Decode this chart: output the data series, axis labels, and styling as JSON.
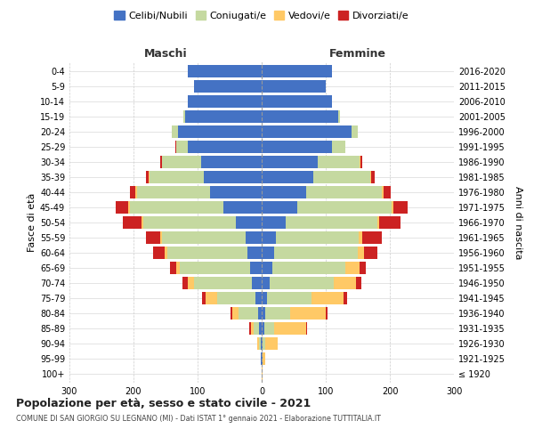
{
  "age_groups": [
    "100+",
    "95-99",
    "90-94",
    "85-89",
    "80-84",
    "75-79",
    "70-74",
    "65-69",
    "60-64",
    "55-59",
    "50-54",
    "45-49",
    "40-44",
    "35-39",
    "30-34",
    "25-29",
    "20-24",
    "15-19",
    "10-14",
    "5-9",
    "0-4"
  ],
  "birth_years": [
    "≤ 1920",
    "1921-1925",
    "1926-1930",
    "1931-1935",
    "1936-1940",
    "1941-1945",
    "1946-1950",
    "1951-1955",
    "1956-1960",
    "1961-1965",
    "1966-1970",
    "1971-1975",
    "1976-1980",
    "1981-1985",
    "1986-1990",
    "1991-1995",
    "1996-2000",
    "2001-2005",
    "2006-2010",
    "2011-2015",
    "2016-2020"
  ],
  "maschi": {
    "celibi": [
      0,
      1,
      2,
      4,
      6,
      10,
      15,
      18,
      22,
      25,
      40,
      60,
      80,
      90,
      95,
      115,
      130,
      120,
      115,
      105,
      115
    ],
    "coniugati": [
      0,
      0,
      2,
      8,
      30,
      60,
      90,
      110,
      125,
      130,
      145,
      145,
      115,
      85,
      60,
      18,
      10,
      2,
      0,
      0,
      0
    ],
    "vedovi": [
      0,
      0,
      3,
      5,
      10,
      18,
      10,
      5,
      5,
      3,
      3,
      3,
      2,
      1,
      1,
      1,
      0,
      0,
      0,
      0,
      0
    ],
    "divorziati": [
      0,
      0,
      0,
      2,
      3,
      5,
      8,
      10,
      18,
      22,
      28,
      20,
      8,
      5,
      3,
      1,
      0,
      0,
      0,
      0,
      0
    ]
  },
  "femmine": {
    "nubili": [
      0,
      1,
      2,
      4,
      5,
      8,
      12,
      16,
      20,
      22,
      38,
      55,
      70,
      80,
      88,
      110,
      140,
      120,
      110,
      100,
      110
    ],
    "coniugate": [
      0,
      0,
      3,
      15,
      40,
      70,
      100,
      115,
      130,
      130,
      142,
      148,
      118,
      90,
      65,
      20,
      10,
      2,
      0,
      0,
      0
    ],
    "vedove": [
      1,
      5,
      20,
      50,
      55,
      50,
      35,
      22,
      10,
      5,
      4,
      3,
      2,
      1,
      1,
      0,
      0,
      0,
      0,
      0,
      0
    ],
    "divorziate": [
      0,
      0,
      0,
      2,
      3,
      6,
      8,
      10,
      20,
      30,
      32,
      22,
      12,
      5,
      3,
      1,
      0,
      0,
      0,
      0,
      0
    ]
  },
  "colors": {
    "celibi_nubili": "#4472C4",
    "coniugati": "#c5d9a0",
    "vedovi": "#ffc966",
    "divorziati": "#cc2222"
  },
  "xlim": 300,
  "title": "Popolazione per età, sesso e stato civile - 2021",
  "subtitle": "COMUNE DI SAN GIORGIO SU LEGNANO (MI) - Dati ISTAT 1° gennaio 2021 - Elaborazione TUTTITALIA.IT",
  "ylabel_left": "Fasce di età",
  "ylabel_right": "Anni di nascita"
}
